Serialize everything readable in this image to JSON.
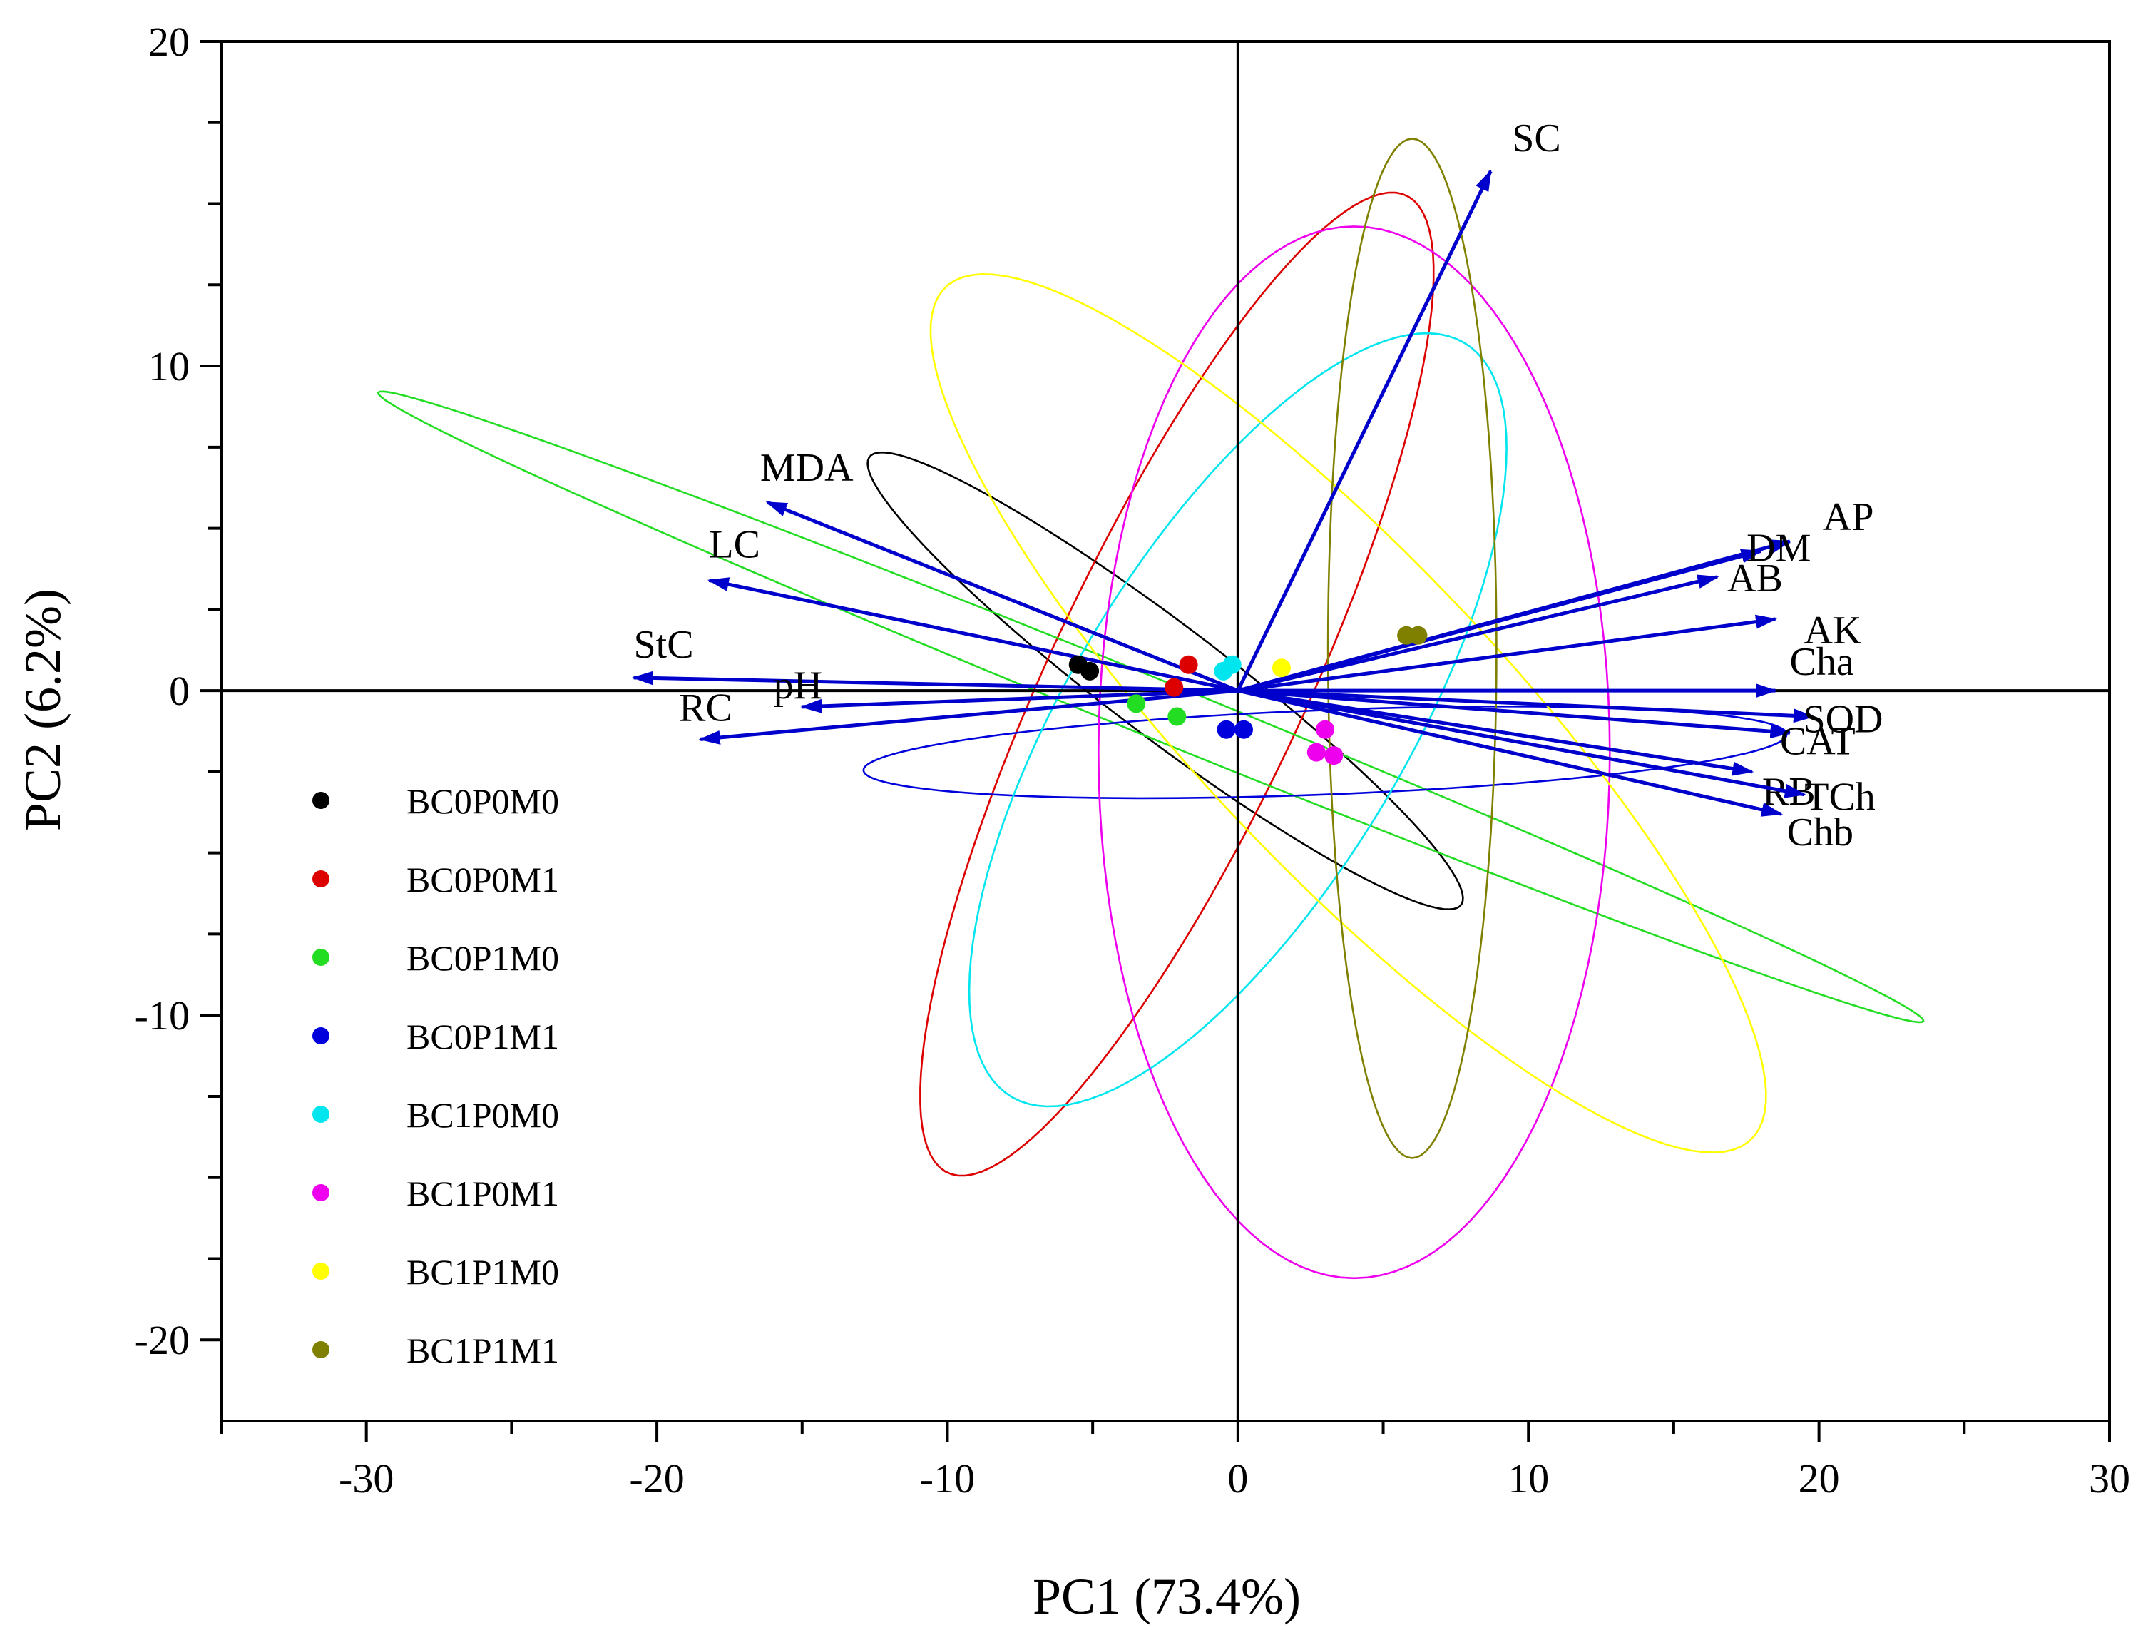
{
  "chart_data": {
    "type": "scatter",
    "subtype": "pca-biplot",
    "xlabel": "PC1 (73.4%)",
    "ylabel": "PC2 (6.2%)",
    "xlim": [
      -35,
      30
    ],
    "ylim": [
      -22.5,
      20
    ],
    "xticks": [
      -30,
      -20,
      -10,
      0,
      10,
      20,
      30
    ],
    "xtick_labels": [
      "-30",
      "-20",
      "-10",
      "0",
      "10",
      "20",
      "30"
    ],
    "yticks": [
      -20,
      -10,
      0,
      10,
      20
    ],
    "ytick_labels": [
      "-20",
      "-10",
      "0",
      "10",
      "20"
    ],
    "grid": false,
    "zero_lines": true,
    "legend_position": "bottom-left",
    "arrow_color": "#0000cc",
    "groups": [
      {
        "name": "BC0P0M0",
        "color": "#000000",
        "points": [
          [
            -5.5,
            0.8
          ],
          [
            -5.1,
            0.6
          ]
        ],
        "ellipse": {
          "cx": -2.5,
          "cy": 0.3,
          "rx": 12.3,
          "ry": 1.8,
          "angle": -34
        }
      },
      {
        "name": "BC0P0M1",
        "color": "#dd0000",
        "points": [
          [
            -1.7,
            0.8
          ],
          [
            -2.2,
            0.1
          ]
        ],
        "ellipse": {
          "cx": -2.1,
          "cy": 0.2,
          "rx": 17.0,
          "ry": 4.3,
          "angle": 62
        }
      },
      {
        "name": "BC0P1M0",
        "color": "#22dd22",
        "points": [
          [
            -3.5,
            -0.4
          ],
          [
            -2.1,
            -0.8
          ]
        ],
        "ellipse": {
          "cx": -3.0,
          "cy": -0.5,
          "rx": 28.3,
          "ry": 0.9,
          "angle": -20
        }
      },
      {
        "name": "BC0P1M1",
        "color": "#0000dd",
        "points": [
          [
            -0.4,
            -1.2
          ],
          [
            0.2,
            -1.2
          ]
        ],
        "ellipse": {
          "cx": 3.0,
          "cy": -1.9,
          "rx": 15.9,
          "ry": 1.3,
          "angle": 2
        }
      },
      {
        "name": "BC1P0M0",
        "color": "#00e5ee",
        "points": [
          [
            -0.5,
            0.6
          ],
          [
            -0.2,
            0.8
          ]
        ],
        "ellipse": {
          "cx": 0.0,
          "cy": -0.9,
          "rx": 14.0,
          "ry": 5.6,
          "angle": 55
        }
      },
      {
        "name": "BC1P0M1",
        "color": "#ee00ee",
        "points": [
          [
            3.0,
            -1.2
          ],
          [
            2.7,
            -1.9
          ],
          [
            3.3,
            -2.0
          ]
        ],
        "ellipse": {
          "cx": 4.0,
          "cy": -1.9,
          "rx": 16.2,
          "ry": 8.8,
          "angle": 90
        }
      },
      {
        "name": "BC1P1M0",
        "color": "#ffff00",
        "points": [
          [
            1.5,
            0.7
          ]
        ],
        "ellipse": {
          "cx": 3.8,
          "cy": -0.7,
          "rx": 19.1,
          "ry": 5.0,
          "angle": -43
        }
      },
      {
        "name": "BC1P1M1",
        "color": "#808000",
        "points": [
          [
            5.8,
            1.7
          ],
          [
            6.2,
            1.7
          ]
        ],
        "ellipse": {
          "cx": 6.0,
          "cy": 1.3,
          "rx": 15.7,
          "ry": 2.9,
          "angle": 90
        }
      }
    ],
    "loadings": [
      {
        "name": "SC",
        "x": 8.7,
        "y": 16.0
      },
      {
        "name": "MDA",
        "x": -16.2,
        "y": 5.8
      },
      {
        "name": "LC",
        "x": -18.2,
        "y": 3.4
      },
      {
        "name": "StC",
        "x": -20.8,
        "y": 0.4
      },
      {
        "name": "pH",
        "x": -15.0,
        "y": -0.5
      },
      {
        "name": "RC",
        "x": -18.5,
        "y": -1.5
      },
      {
        "name": "AP",
        "x": 19.0,
        "y": 4.6
      },
      {
        "name": "DM",
        "x": 18.0,
        "y": 4.3
      },
      {
        "name": "AB",
        "x": 16.5,
        "y": 3.5
      },
      {
        "name": "AK",
        "x": 18.5,
        "y": 2.2
      },
      {
        "name": "Cha",
        "x": 18.5,
        "y": 0.0
      },
      {
        "name": "SOD",
        "x": 19.8,
        "y": -0.8
      },
      {
        "name": "CAT",
        "x": 19.0,
        "y": -1.3
      },
      {
        "name": "RB",
        "x": 17.7,
        "y": -2.5
      },
      {
        "name": "TCh",
        "x": 19.5,
        "y": -3.2
      },
      {
        "name": "Chb",
        "x": 18.7,
        "y": -3.8
      }
    ]
  }
}
